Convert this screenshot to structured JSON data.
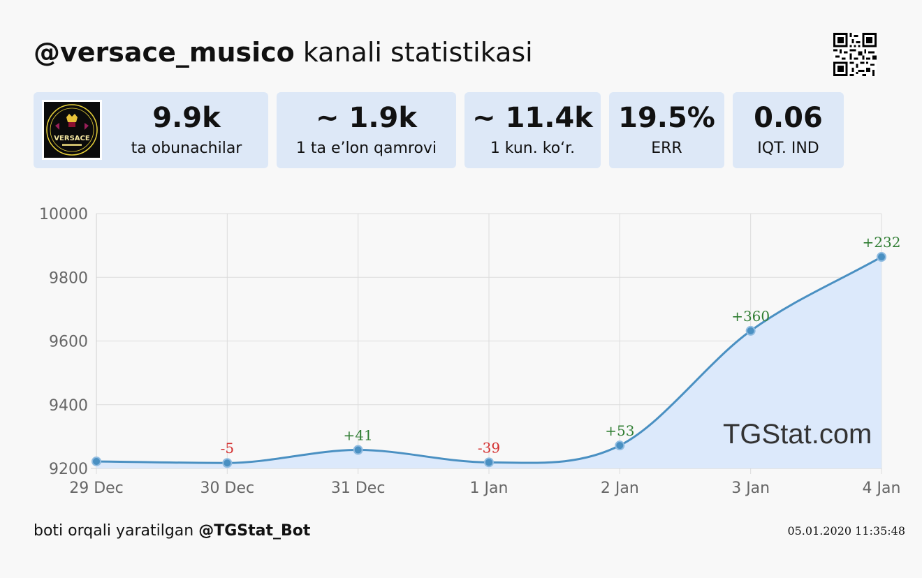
{
  "header": {
    "handle": "@versace_musico",
    "title_rest": " kanali statistikasi"
  },
  "channel": {
    "avatar_logo_text": "VERSACE"
  },
  "stats": [
    {
      "value": "9.9k",
      "label": "ta obunachilar"
    },
    {
      "value": "~ 1.9k",
      "label": "1 ta e’lon qamrovi"
    },
    {
      "value": "~ 11.4k",
      "label": "1 kun. ko‘r."
    },
    {
      "value": "19.5%",
      "label": "ERR"
    },
    {
      "value": "0.06",
      "label": "IQT. IND"
    }
  ],
  "watermark": "TGStat.com",
  "footer": {
    "prefix": "boti orqali yaratilgan ",
    "bot": "@TGStat_Bot",
    "timestamp": "05.01.2020 11:35:48"
  },
  "colors": {
    "card_bg": "#dde8f7",
    "line": "#4a90c2",
    "area_fill": "#dce9fb",
    "positive": "#2f7d32",
    "negative": "#d32f2f"
  },
  "chart_data": {
    "type": "area",
    "title": "",
    "xlabel": "",
    "ylabel": "",
    "categories": [
      "29 Dec",
      "30 Dec",
      "31 Dec",
      "1 Jan",
      "2 Jan",
      "3 Jan",
      "4 Jan"
    ],
    "values": [
      9222,
      9217,
      9258,
      9219,
      9272,
      9632,
      9864
    ],
    "labels": [
      "",
      "-5",
      "+41",
      "-39",
      "+53",
      "+360",
      "+232"
    ],
    "ylim": [
      9200,
      10000
    ],
    "yticks": [
      10000,
      9800,
      9600,
      9400,
      9200
    ],
    "grid": true,
    "legend": "none"
  }
}
